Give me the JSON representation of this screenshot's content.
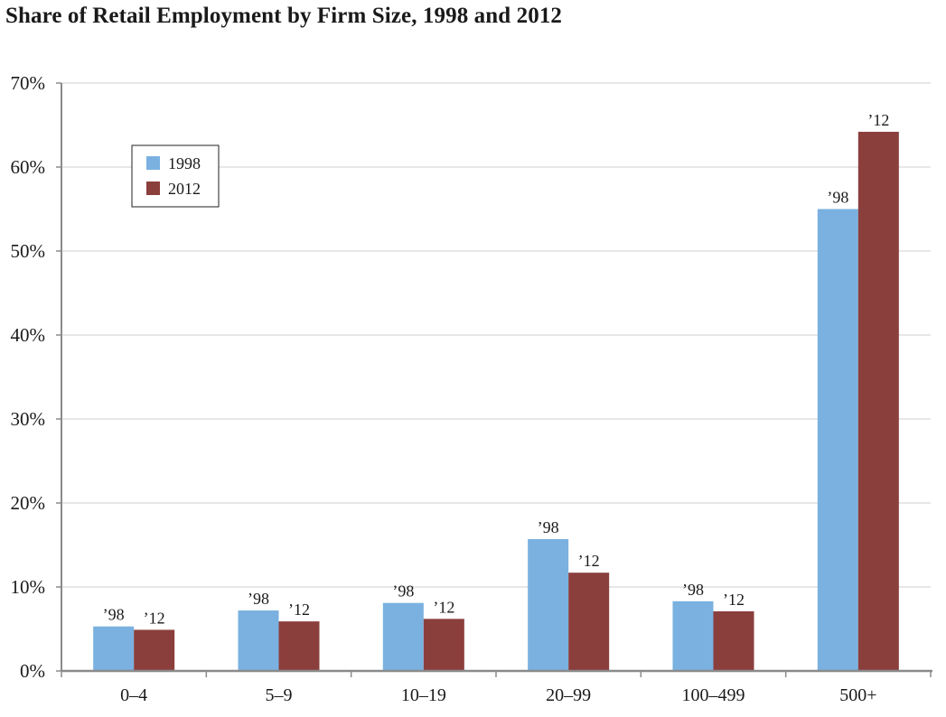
{
  "chart_data": {
    "type": "bar",
    "title": "Share of Retail Employment by Firm Size, 1998 and 2012",
    "categories": [
      "0–4",
      "5–9",
      "10–19",
      "20–99",
      "100–499",
      "500+"
    ],
    "series": [
      {
        "name": "1998",
        "short_label": "’98",
        "color": "#7ab1e0",
        "values": [
          5.3,
          7.2,
          8.1,
          15.7,
          8.3,
          55.0
        ]
      },
      {
        "name": "2012",
        "short_label": "’12",
        "color": "#8b3f3d",
        "values": [
          4.9,
          5.9,
          6.2,
          11.7,
          7.1,
          64.2
        ]
      }
    ],
    "y_ticks": [
      "0%",
      "10%",
      "20%",
      "30%",
      "40%",
      "50%",
      "60%",
      "70%"
    ],
    "ylim": [
      0,
      70
    ],
    "xlabel": "",
    "ylabel": "",
    "grid": true,
    "legend_position": "top-left"
  }
}
